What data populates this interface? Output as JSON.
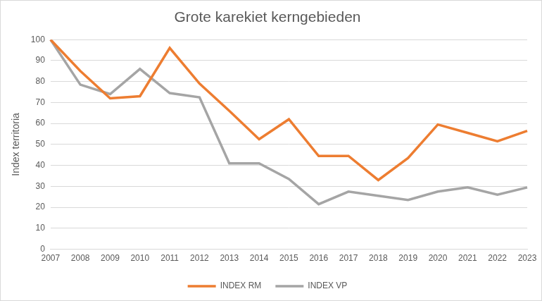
{
  "chart_data": {
    "type": "line",
    "title": "Grote karekiet kerngebieden",
    "y_label": "Index territoria",
    "categories": [
      "2007",
      "2008",
      "2009",
      "2010",
      "2011",
      "2012",
      "2013",
      "2014",
      "2015",
      "2016",
      "2017",
      "2018",
      "2019",
      "2020",
      "2021",
      "2022",
      "2023"
    ],
    "series": [
      {
        "name": "INDEX RM",
        "color": "#ed7d31",
        "marker": "none",
        "line_style": "solid",
        "values": [
          100,
          85,
          72,
          73,
          96,
          79,
          66,
          52.5,
          62,
          44.5,
          44.5,
          33,
          43.5,
          59.5,
          55.5,
          51.5,
          56.5
        ]
      },
      {
        "name": "INDEX VP",
        "color": "#a5a5a5",
        "marker": "none",
        "line_style": "solid",
        "values": [
          100,
          78.5,
          74,
          86,
          74.5,
          72.5,
          41,
          41,
          33.5,
          21.5,
          27.5,
          25.5,
          23.5,
          27.5,
          29.5,
          26,
          29.5
        ]
      }
    ],
    "ylim": [
      0,
      100
    ],
    "yticks": [
      0,
      10,
      20,
      30,
      40,
      50,
      60,
      70,
      80,
      90,
      100
    ],
    "grid": true,
    "legend": "bottom"
  }
}
